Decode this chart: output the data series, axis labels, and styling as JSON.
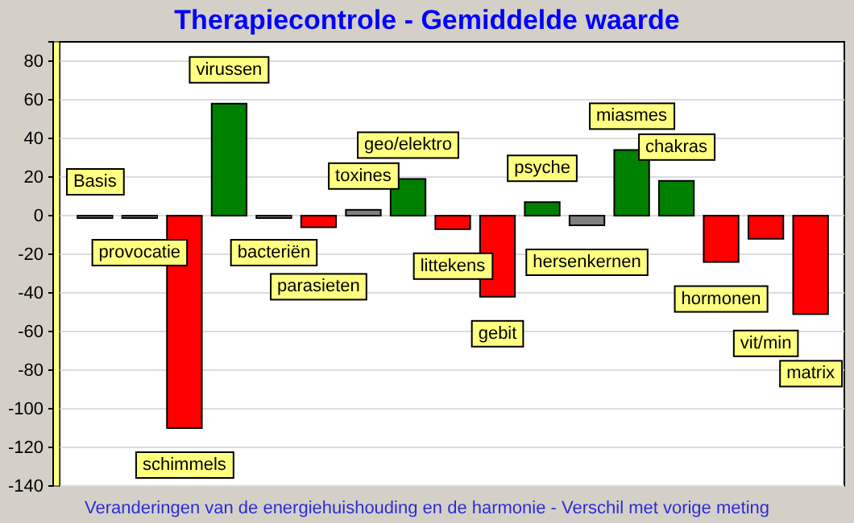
{
  "chart_data": {
    "type": "bar",
    "title": "Therapiecontrole - Gemiddelde waarde",
    "annotations": [
      "Veranderingen  van de energiehuishouding en de harmonie - Verschil met vorige meting"
    ],
    "categories": [
      "Basis",
      "provocatie",
      "schimmels",
      "virussen",
      "bacteriën",
      "parasieten",
      "toxines",
      "geo/elektro",
      "littekens",
      "gebit",
      "psyche",
      "hersenkernen",
      "miasmes",
      "chakras",
      "hormonen",
      "vit/min",
      "matrix"
    ],
    "values": [
      0,
      0,
      -110,
      58,
      0,
      -6,
      3,
      19,
      -7,
      -42,
      7,
      -5,
      34,
      18,
      -24,
      -12,
      -51
    ],
    "colors": [
      "#808080",
      "#808080",
      "#ff0000",
      "#008000",
      "#808080",
      "#ff0000",
      "#808080",
      "#008000",
      "#ff0000",
      "#ff0000",
      "#008000",
      "#808080",
      "#008000",
      "#008000",
      "#ff0000",
      "#ff0000",
      "#ff0000"
    ],
    "ylim": [
      -140,
      90
    ],
    "yticks": [
      -140,
      -120,
      -100,
      -80,
      -60,
      -40,
      -20,
      0,
      20,
      40,
      60,
      80
    ],
    "grid": "y"
  }
}
